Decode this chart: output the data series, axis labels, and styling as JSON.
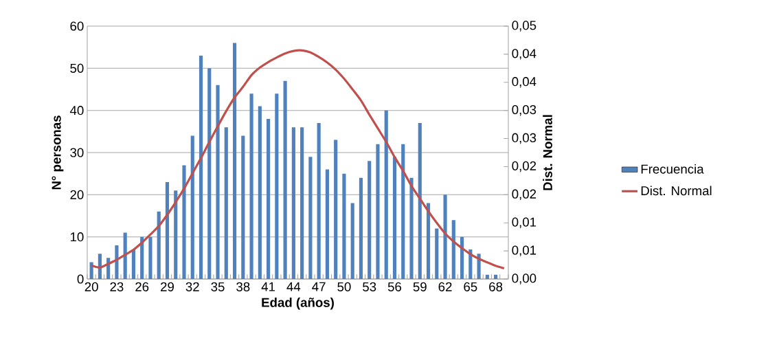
{
  "chart_data": {
    "type": "bar",
    "xlabel": "Edad (años)",
    "ylabel": "N° personas",
    "y2label": "Dist. Normal",
    "categories": [
      "20",
      null,
      null,
      "23",
      null,
      null,
      "26",
      null,
      null,
      "29",
      null,
      null,
      "32",
      null,
      null,
      "35",
      null,
      null,
      "38",
      null,
      null,
      "41",
      null,
      null,
      "44",
      null,
      null,
      "47",
      null,
      null,
      "50",
      null,
      null,
      "53",
      null,
      null,
      "56",
      null,
      null,
      "59",
      null,
      null,
      "62",
      null,
      null,
      "65",
      null,
      null,
      "68",
      null
    ],
    "series": [
      {
        "name": "Frecuencia",
        "color": "#4f81bd",
        "values": [
          4,
          6,
          5,
          8,
          11,
          7,
          10,
          10,
          16,
          23,
          21,
          27,
          34,
          53,
          50,
          46,
          36,
          56,
          34,
          44,
          41,
          38,
          44,
          47,
          36,
          36,
          29,
          37,
          26,
          33,
          25,
          18,
          24,
          28,
          32,
          40,
          29,
          32,
          24,
          37,
          18,
          12,
          20,
          14,
          10,
          7,
          6,
          1,
          1,
          0
        ]
      },
      {
        "name": "Dist. Normal",
        "type": "line",
        "axis": "y2",
        "color": "#c0504d",
        "values": [
          0.0027,
          0.0023,
          0.003,
          0.0038,
          0.0048,
          0.0058,
          0.0072,
          0.0088,
          0.0105,
          0.0127,
          0.0152,
          0.0179,
          0.0209,
          0.0239,
          0.0271,
          0.0302,
          0.0332,
          0.0359,
          0.038,
          0.0403,
          0.0418,
          0.0429,
          0.0438,
          0.0446,
          0.0451,
          0.0452,
          0.0448,
          0.0439,
          0.0428,
          0.0414,
          0.0396,
          0.0375,
          0.0353,
          0.0325,
          0.0298,
          0.0271,
          0.0241,
          0.0214,
          0.0184,
          0.0159,
          0.0134,
          0.0111,
          0.009,
          0.0074,
          0.0061,
          0.0049,
          0.004,
          0.0033,
          0.0026,
          0.0021
        ]
      }
    ],
    "ylim": [
      0,
      60
    ],
    "yticks": [
      0,
      10,
      20,
      30,
      40,
      50,
      60
    ],
    "y2lim": [
      0,
      0.05
    ],
    "y2ticks": [
      {
        "value": 0,
        "label": "0,00"
      },
      {
        "value": 0.005556,
        "label": "0,01"
      },
      {
        "value": 0.011111,
        "label": "0,01"
      },
      {
        "value": 0.016667,
        "label": "0,02"
      },
      {
        "value": 0.022222,
        "label": "0,02"
      },
      {
        "value": 0.027778,
        "label": "0,03"
      },
      {
        "value": 0.033333,
        "label": "0,03"
      },
      {
        "value": 0.038889,
        "label": "0,04"
      },
      {
        "value": 0.044444,
        "label": "0,04"
      },
      {
        "value": 0.05,
        "label": "0,05"
      }
    ],
    "grid": "y",
    "legend": "right"
  }
}
